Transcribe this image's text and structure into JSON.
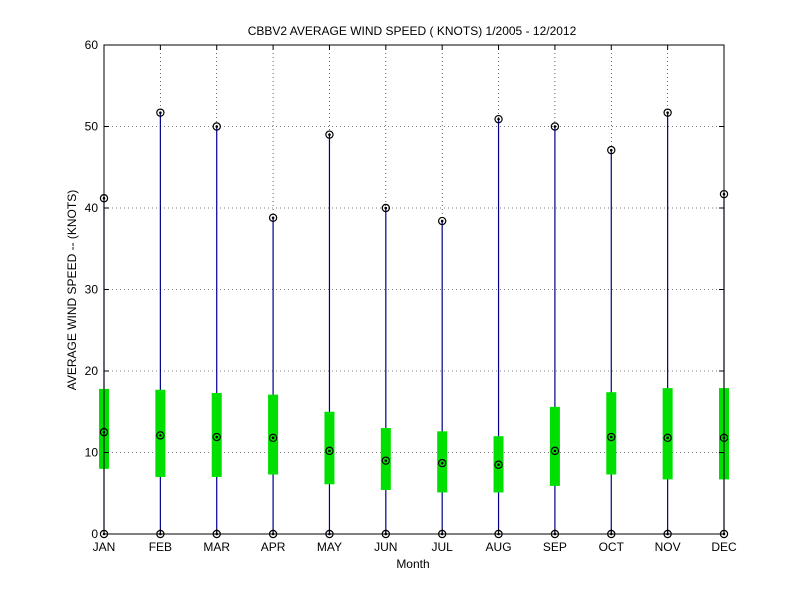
{
  "chart_data": {
    "type": "box",
    "title": "CBBV2  AVERAGE WIND SPEED ( KNOTS) 1/2005 - 12/2012",
    "xlabel": "Month",
    "ylabel": "AVERAGE WIND SPEED -- (KNOTS)",
    "ylim": [
      0,
      60
    ],
    "yticks": [
      0,
      10,
      20,
      30,
      40,
      50,
      60
    ],
    "grid": true,
    "categories": [
      "JAN",
      "FEB",
      "MAR",
      "APR",
      "MAY",
      "JUN",
      "JUL",
      "AUG",
      "SEP",
      "OCT",
      "NOV",
      "DEC"
    ],
    "min": [
      0,
      0,
      0,
      0,
      0,
      0,
      0,
      0,
      0,
      0,
      0,
      0
    ],
    "q1": [
      8.0,
      7.0,
      7.0,
      7.3,
      6.1,
      5.4,
      5.1,
      5.1,
      5.9,
      7.3,
      6.7,
      6.7
    ],
    "median": [
      12.5,
      12.1,
      11.9,
      11.8,
      10.2,
      9.0,
      8.7,
      8.5,
      10.2,
      11.9,
      11.8,
      11.8
    ],
    "q3": [
      17.8,
      17.7,
      17.3,
      17.1,
      15.0,
      13.0,
      12.6,
      12.0,
      15.6,
      17.4,
      17.9,
      17.9
    ],
    "max": [
      41.2,
      51.7,
      50.0,
      38.8,
      49.0,
      40.0,
      38.4,
      50.9,
      50.0,
      47.1,
      51.7,
      41.7
    ],
    "colors": {
      "whisker": "#00008b",
      "box": "#00e000",
      "marker": "#000000"
    }
  }
}
